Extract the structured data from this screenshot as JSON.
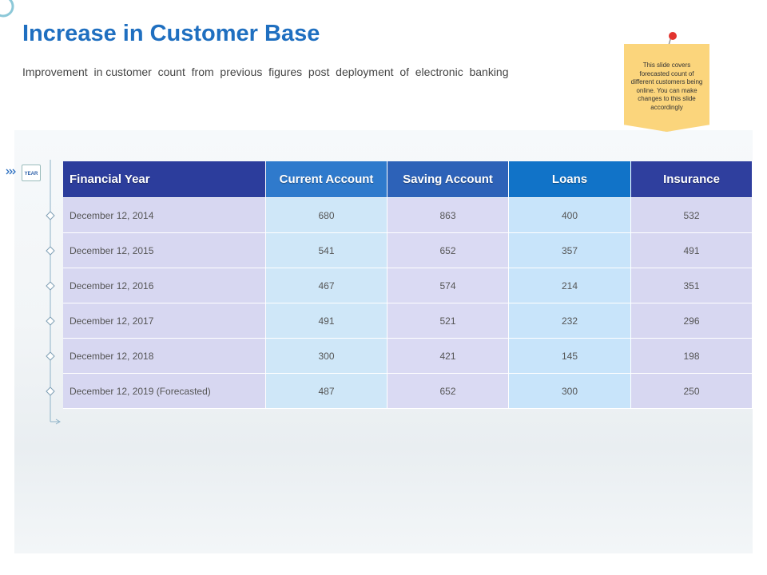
{
  "header": {
    "title": "Increase in Customer Base",
    "subtitle": "Improvement  in customer  count  from  previous  figures  post  deployment  of  electronic  banking"
  },
  "note": {
    "text": "This slide covers forecasted count of different customers being online. You can make changes to this slide accordingly"
  },
  "badge": {
    "label": "YEAR"
  },
  "table": {
    "columns": [
      "Financial Year",
      "Current Account",
      "Saving Account",
      "Loans",
      "Insurance"
    ],
    "rows": [
      [
        "December 12, 2014",
        680,
        863,
        400,
        532
      ],
      [
        "December 12, 2015",
        541,
        652,
        357,
        491
      ],
      [
        "December 12, 2016",
        467,
        574,
        214,
        351
      ],
      [
        "December 12, 2017",
        491,
        521,
        232,
        296
      ],
      [
        "December 12, 2018",
        300,
        421,
        145,
        198
      ],
      [
        "December 12, 2019 (Forecasted)",
        487,
        652,
        300,
        250
      ]
    ]
  }
}
